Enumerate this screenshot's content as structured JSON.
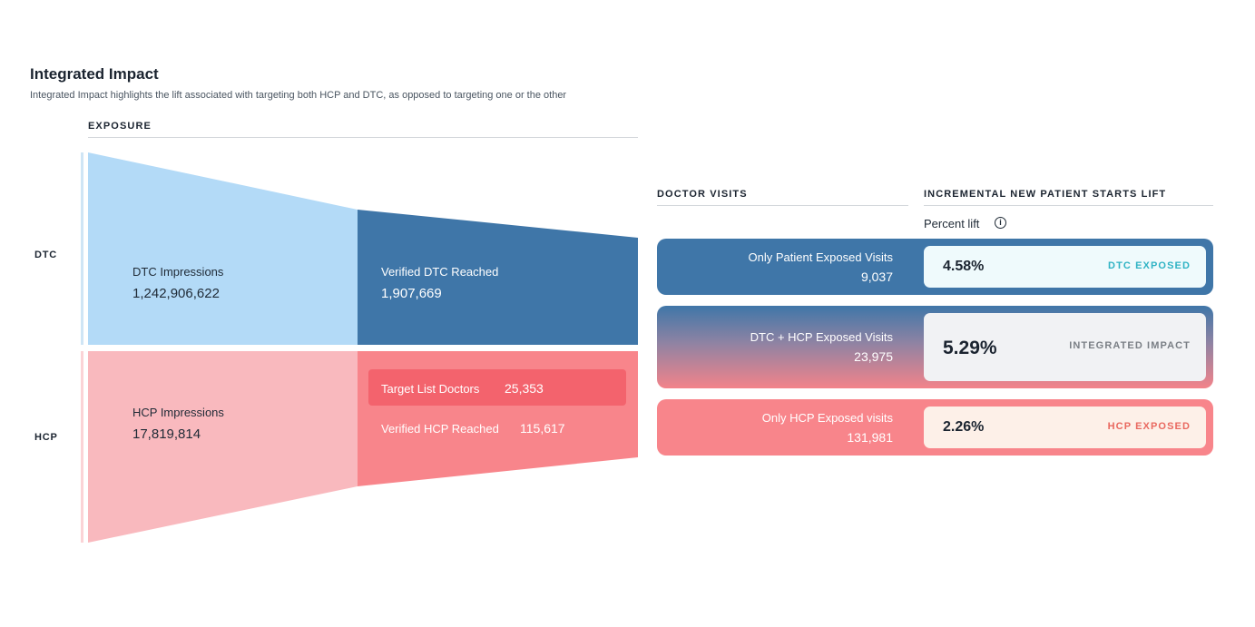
{
  "header": {
    "title": "Integrated Impact",
    "subtitle": "Integrated Impact highlights the lift associated with targeting both HCP and DTC, as opposed to targeting one or the other"
  },
  "columns": {
    "exposure": "EXPOSURE",
    "doctor_visits": "DOCTOR VISITS",
    "lift": "INCREMENTAL NEW PATIENT STARTS LIFT",
    "percent_lift": "Percent lift",
    "info_glyph": "i"
  },
  "rows": {
    "dtc": "DTC",
    "hcp": "HCP"
  },
  "funnel": {
    "dtc_impressions": {
      "label": "DTC Impressions",
      "value": "1,242,906,622"
    },
    "dtc_reached": {
      "label": "Verified DTC Reached",
      "value": "1,907,669"
    },
    "hcp_impressions": {
      "label": "HCP Impressions",
      "value": "17,819,814"
    },
    "target_list": {
      "label": "Target List Doctors",
      "value": "25,353"
    },
    "hcp_reached": {
      "label": "Verified HCP Reached",
      "value": "115,617"
    }
  },
  "visits": [
    {
      "name": "Only  Patient Exposed Visits",
      "count": "9,037",
      "lift": "4.58%",
      "tag": "DTC EXPOSED"
    },
    {
      "name": "DTC + HCP Exposed Visits",
      "count": "23,975",
      "lift": "5.29%",
      "tag": "INTEGRATED IMPACT"
    },
    {
      "name": "Only HCP Exposed visits",
      "count": "131,981",
      "lift": "2.26%",
      "tag": "HCP EXPOSED"
    }
  ],
  "colors": {
    "dtc_light": "#b3daf7",
    "dtc_dark": "#3f76a8",
    "hcp_light": "#f9b9be",
    "hcp_mid": "#f8858b",
    "hcp_accent": "#f3636d",
    "dtc_tag": "#2fb3c4",
    "integrated_tag": "#7a7f85",
    "hcp_tag": "#e9685f"
  }
}
